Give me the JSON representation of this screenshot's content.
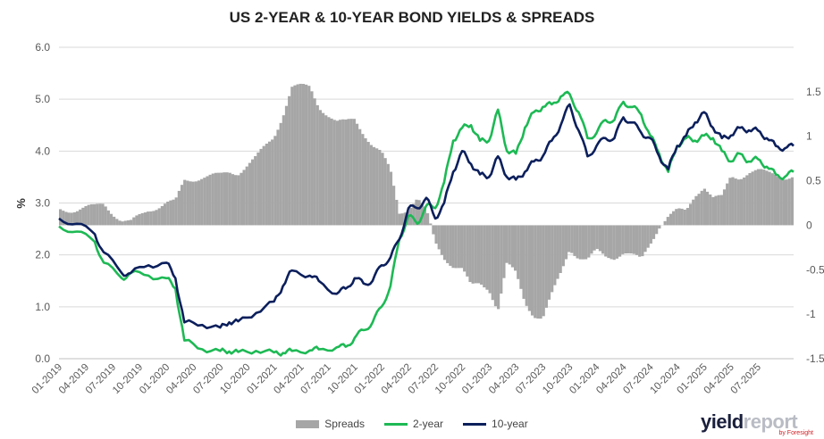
{
  "title": "US 2-YEAR & 10-YEAR BOND YIELDS & SPREADS",
  "brand": {
    "part1": "yield",
    "part2": "report",
    "byline": "by Foresight"
  },
  "legend": [
    {
      "label": "Spreads",
      "kind": "bar",
      "color": "#a6a6a6"
    },
    {
      "label": "2-year",
      "kind": "line",
      "color": "#1db954"
    },
    {
      "label": "10-year",
      "kind": "line",
      "color": "#0b1f5c"
    }
  ],
  "chart_data": {
    "type": "line",
    "title": "US 2-YEAR & 10-YEAR BOND YIELDS & SPREADS",
    "ylabel": "%",
    "y2label": "",
    "ylim": [
      0.0,
      6.0
    ],
    "y2lim": [
      -1.5,
      2.0
    ],
    "yticks": [
      "0.0",
      "1.0",
      "2.0",
      "3.0",
      "4.0",
      "5.0",
      "6.0"
    ],
    "y2ticks": [
      "-1.5",
      "-1",
      "-0.5",
      "0",
      "0.5",
      "1",
      "1.5"
    ],
    "xticks": [
      "01-2019",
      "04-2019",
      "07-2019",
      "10-2019",
      "01-2020",
      "04-2020",
      "07-2020",
      "10-2020",
      "01-2021",
      "04-2021",
      "07-2021",
      "10-2021",
      "01-2022",
      "04-2022",
      "07-2022",
      "10-2022",
      "01-2023",
      "04-2023",
      "07-2023",
      "10-2023",
      "01-2024",
      "04-2024",
      "07-2024",
      "10-2024",
      "01-2025",
      "04-2025",
      "07-2025"
    ],
    "x_start": "2019-01",
    "x_end": "2025-11",
    "grid": true,
    "legend_position": "bottom",
    "series": [
      {
        "name": "10-year",
        "axis": "left",
        "color": "#0b1f5c",
        "x": [
          "2019-01",
          "2019-03",
          "2019-05",
          "2019-06",
          "2019-08",
          "2019-09",
          "2019-11",
          "2020-01",
          "2020-02",
          "2020-03",
          "2020-05",
          "2020-07",
          "2020-08",
          "2020-09",
          "2020-11",
          "2021-01",
          "2021-02",
          "2021-03",
          "2021-05",
          "2021-06",
          "2021-08",
          "2021-09",
          "2021-10",
          "2021-11",
          "2021-12",
          "2022-01",
          "2022-02",
          "2022-03",
          "2022-04",
          "2022-05",
          "2022-06",
          "2022-07",
          "2022-08",
          "2022-09",
          "2022-10",
          "2022-11",
          "2022-12",
          "2023-01",
          "2023-02",
          "2023-03",
          "2023-04",
          "2023-05",
          "2023-06",
          "2023-07",
          "2023-08",
          "2023-09",
          "2023-10",
          "2023-11",
          "2023-12",
          "2024-01",
          "2024-02",
          "2024-03",
          "2024-04",
          "2024-05",
          "2024-06",
          "2024-07",
          "2024-08",
          "2024-09",
          "2024-10",
          "2024-11",
          "2024-12",
          "2025-01",
          "2025-02",
          "2025-03",
          "2025-04",
          "2025-05",
          "2025-06",
          "2025-07",
          "2025-08",
          "2025-09",
          "2025-10",
          "2025-11"
        ],
        "values": [
          2.7,
          2.6,
          2.4,
          2.05,
          1.65,
          1.65,
          1.8,
          1.85,
          1.55,
          0.7,
          0.65,
          0.6,
          0.7,
          0.72,
          0.88,
          1.1,
          1.4,
          1.7,
          1.6,
          1.5,
          1.25,
          1.35,
          1.55,
          1.45,
          1.5,
          1.8,
          1.95,
          2.3,
          2.9,
          2.9,
          3.1,
          2.7,
          3.0,
          3.6,
          4.0,
          3.75,
          3.55,
          3.5,
          3.9,
          3.5,
          3.45,
          3.6,
          3.8,
          3.9,
          4.2,
          4.5,
          4.9,
          4.4,
          3.9,
          4.1,
          4.25,
          4.25,
          4.65,
          4.55,
          4.35,
          4.25,
          3.9,
          3.65,
          4.1,
          4.3,
          4.55,
          4.75,
          4.45,
          4.25,
          4.3,
          4.45,
          4.4,
          4.4,
          4.25,
          4.1,
          4.05,
          4.1
        ]
      },
      {
        "name": "2-year",
        "axis": "left",
        "color": "#1db954",
        "x": [
          "2019-01",
          "2019-03",
          "2019-05",
          "2019-06",
          "2019-08",
          "2019-09",
          "2019-11",
          "2020-01",
          "2020-02",
          "2020-03",
          "2020-05",
          "2020-07",
          "2020-08",
          "2020-09",
          "2020-11",
          "2021-01",
          "2021-02",
          "2021-03",
          "2021-05",
          "2021-06",
          "2021-08",
          "2021-09",
          "2021-10",
          "2021-11",
          "2021-12",
          "2022-01",
          "2022-02",
          "2022-03",
          "2022-04",
          "2022-05",
          "2022-06",
          "2022-07",
          "2022-08",
          "2022-09",
          "2022-10",
          "2022-11",
          "2022-12",
          "2023-01",
          "2023-02",
          "2023-03",
          "2023-04",
          "2023-05",
          "2023-06",
          "2023-07",
          "2023-08",
          "2023-09",
          "2023-10",
          "2023-11",
          "2023-12",
          "2024-01",
          "2024-02",
          "2024-03",
          "2024-04",
          "2024-05",
          "2024-06",
          "2024-07",
          "2024-08",
          "2024-09",
          "2024-10",
          "2024-11",
          "2024-12",
          "2025-01",
          "2025-02",
          "2025-03",
          "2025-04",
          "2025-05",
          "2025-06",
          "2025-07",
          "2025-08",
          "2025-09",
          "2025-10",
          "2025-11"
        ],
        "values": [
          2.55,
          2.45,
          2.25,
          1.85,
          1.55,
          1.65,
          1.6,
          1.55,
          1.35,
          0.35,
          0.18,
          0.15,
          0.14,
          0.13,
          0.15,
          0.12,
          0.11,
          0.15,
          0.16,
          0.18,
          0.22,
          0.23,
          0.4,
          0.55,
          0.7,
          1.0,
          1.4,
          2.3,
          2.75,
          2.6,
          2.95,
          2.9,
          3.4,
          4.2,
          4.45,
          4.5,
          4.2,
          4.2,
          4.8,
          4.0,
          3.95,
          4.45,
          4.75,
          4.85,
          4.9,
          5.05,
          5.1,
          4.75,
          4.25,
          4.35,
          4.6,
          4.6,
          4.95,
          4.85,
          4.7,
          4.3,
          3.95,
          3.6,
          4.1,
          4.25,
          4.2,
          4.3,
          4.25,
          4.0,
          3.8,
          3.95,
          3.8,
          3.85,
          3.7,
          3.55,
          3.5,
          3.6
        ]
      },
      {
        "name": "Spreads",
        "axis": "right",
        "color": "#a6a6a6",
        "type": "bar",
        "x": [
          "2019-01",
          "2019-03",
          "2019-05",
          "2019-06",
          "2019-08",
          "2019-09",
          "2019-11",
          "2020-01",
          "2020-02",
          "2020-03",
          "2020-05",
          "2020-07",
          "2020-08",
          "2020-09",
          "2020-11",
          "2021-01",
          "2021-02",
          "2021-03",
          "2021-05",
          "2021-06",
          "2021-08",
          "2021-09",
          "2021-10",
          "2021-11",
          "2021-12",
          "2022-01",
          "2022-02",
          "2022-03",
          "2022-04",
          "2022-05",
          "2022-06",
          "2022-07",
          "2022-08",
          "2022-09",
          "2022-10",
          "2022-11",
          "2022-12",
          "2023-01",
          "2023-02",
          "2023-03",
          "2023-04",
          "2023-05",
          "2023-06",
          "2023-07",
          "2023-08",
          "2023-09",
          "2023-10",
          "2023-11",
          "2023-12",
          "2024-01",
          "2024-02",
          "2024-03",
          "2024-04",
          "2024-05",
          "2024-06",
          "2024-07",
          "2024-08",
          "2024-09",
          "2024-10",
          "2024-11",
          "2024-12",
          "2025-01",
          "2025-02",
          "2025-03",
          "2025-04",
          "2025-05",
          "2025-06",
          "2025-07",
          "2025-08",
          "2025-09",
          "2025-10",
          "2025-11"
        ],
        "values": [
          0.18,
          0.18,
          0.2,
          0.25,
          0.05,
          0.02,
          0.18,
          0.25,
          0.25,
          0.5,
          0.55,
          0.55,
          0.6,
          0.6,
          0.75,
          1.0,
          1.25,
          1.55,
          1.55,
          1.35,
          1.15,
          1.15,
          1.2,
          1.05,
          0.9,
          0.8,
          0.6,
          0.15,
          0.2,
          0.3,
          0.15,
          -0.2,
          -0.35,
          -0.45,
          -0.5,
          -0.7,
          -0.65,
          -0.7,
          -0.95,
          -0.45,
          -0.55,
          -0.85,
          -1.0,
          -1.05,
          -0.8,
          -0.55,
          -0.25,
          -0.35,
          -0.4,
          -0.3,
          -0.35,
          -0.35,
          -0.3,
          -0.35,
          -0.4,
          -0.2,
          0.0,
          0.1,
          0.15,
          0.15,
          0.35,
          0.45,
          0.3,
          0.3,
          0.55,
          0.55,
          0.6,
          0.6,
          0.58,
          0.58,
          0.55,
          0.55
        ]
      }
    ]
  }
}
